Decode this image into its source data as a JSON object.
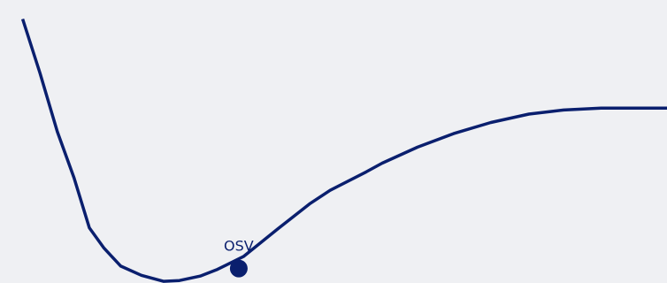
{
  "colors": {
    "background": "#eff0f3",
    "line": "#0a1f6e",
    "label": "#0a1f6e"
  },
  "chart_data": {
    "type": "line",
    "title": "",
    "xlabel": "",
    "ylabel": "",
    "axes_visible": false,
    "grid": false,
    "xlim": [
      0,
      100
    ],
    "ylim": [
      0,
      100
    ],
    "series": [
      {
        "name": "",
        "x": [
          3.4,
          6.0,
          8.6,
          11.1,
          13.4,
          15.6,
          18.1,
          21.2,
          24.5,
          26.9,
          30.0,
          32.6,
          36.5,
          41.7,
          46.4,
          49.5,
          54.9,
          57.3,
          62.6,
          68.0,
          73.6,
          79.3,
          84.5,
          90.1,
          100.0
        ],
        "y": [
          96.9,
          77.0,
          55.4,
          38.4,
          20.0,
          12.5,
          5.9,
          2.5,
          0.3,
          0.6,
          2.2,
          4.7,
          9.4,
          19.7,
          28.8,
          33.8,
          40.6,
          43.8,
          49.7,
          54.7,
          58.8,
          61.9,
          63.4,
          64.1,
          64.1
        ]
      }
    ],
    "highlight": {
      "label": "OSV",
      "x": 35.8,
      "y": 5.0
    }
  }
}
